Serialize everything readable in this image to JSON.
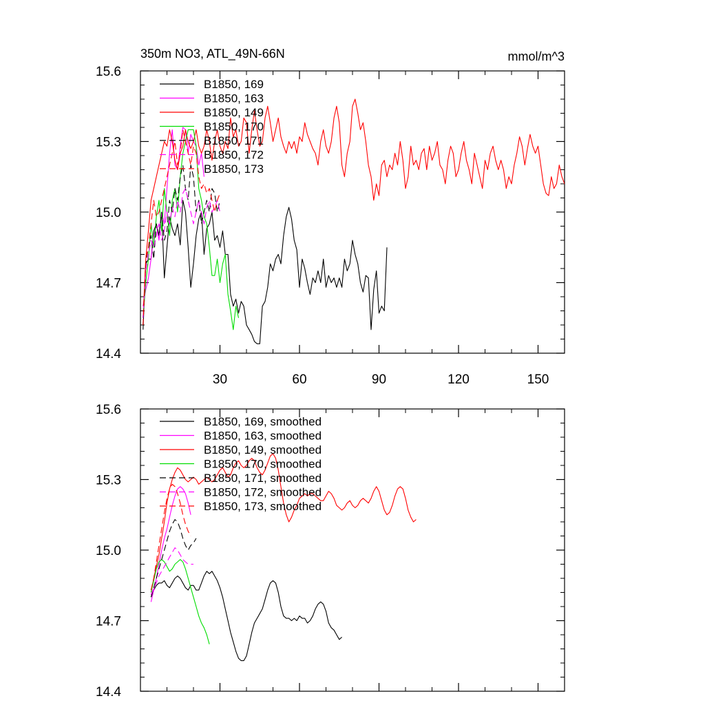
{
  "figure": {
    "title_left": "350m NO3, ATL_49N-66N",
    "title_right": "mmol/m^3"
  },
  "chart_data": [
    {
      "type": "line",
      "title": "350m NO3, ATL_49N-66N",
      "units": "mmol/m^3",
      "xlim": [
        0,
        160
      ],
      "ylim": [
        14.4,
        15.6
      ],
      "xticks": [
        30,
        60,
        90,
        120,
        150
      ],
      "xtick_labels": [
        "30",
        "60",
        "90",
        "120",
        "150"
      ],
      "yticks": [
        14.4,
        14.7,
        15.0,
        15.3,
        15.6
      ],
      "ytick_labels": [
        "14.4",
        "14.7",
        "15.0",
        "15.3",
        "15.6"
      ],
      "legend_position": "top-left",
      "series": [
        {
          "name": "B1850, 169",
          "color": "#000000",
          "dash": "solid",
          "x_start": 1,
          "values": [
            14.5,
            14.78,
            14.8,
            14.8,
            14.92,
            14.95,
            14.9,
            15.0,
            14.72,
            14.85,
            14.98,
            14.93,
            14.9,
            14.95,
            14.86,
            15.05,
            15.0,
            14.85,
            14.68,
            14.78,
            14.9,
            14.97,
            15.0,
            14.82,
            14.93,
            14.95,
            15.0,
            14.88,
            14.9,
            14.85,
            14.92,
            14.82,
            14.82,
            14.65,
            14.6,
            14.63,
            14.57,
            14.62,
            14.6,
            14.52,
            14.5,
            14.48,
            14.45,
            14.44,
            14.44,
            14.6,
            14.62,
            14.68,
            14.78,
            14.75,
            14.8,
            14.82,
            14.78,
            14.9,
            14.98,
            15.02,
            14.97,
            14.88,
            14.84,
            14.68,
            14.8,
            14.76,
            14.7,
            14.65,
            14.72,
            14.7,
            14.75,
            14.7,
            14.8,
            14.68,
            14.73,
            14.7,
            14.72,
            14.68,
            14.72,
            14.68,
            14.8,
            14.75,
            14.78,
            14.88,
            14.82,
            14.78,
            14.7,
            14.66,
            14.73,
            14.72,
            14.5,
            14.67,
            14.75,
            14.57,
            14.6,
            14.58,
            14.85
          ]
        },
        {
          "name": "B1850, 163",
          "color": "#ff00ff",
          "dash": "solid",
          "x_start": 1,
          "values": [
            14.6,
            14.67,
            14.72,
            14.8,
            14.9,
            14.95,
            14.88,
            15.0,
            14.95,
            15.1,
            15.25,
            15.35,
            15.2,
            15.18,
            15.28,
            15.36,
            15.35,
            15.25,
            15.33,
            15.3,
            15.28,
            15.2,
            15.25,
            15.15
          ]
        },
        {
          "name": "B1850, 149",
          "color": "#ff0000",
          "dash": "solid",
          "x_start": 1,
          "values": [
            14.55,
            14.8,
            14.92,
            15.05,
            15.1,
            15.15,
            15.2,
            15.25,
            15.3,
            15.28,
            15.35,
            15.3,
            15.22,
            15.18,
            15.25,
            15.28,
            15.35,
            15.3,
            15.27,
            15.3,
            15.35,
            15.28,
            15.25,
            15.28,
            15.35,
            15.3,
            15.22,
            15.3,
            15.35,
            15.28,
            15.25,
            15.3,
            15.27,
            15.4,
            15.32,
            15.35,
            15.28,
            15.3,
            15.4,
            15.38,
            15.25,
            15.35,
            15.43,
            15.35,
            15.28,
            15.3,
            15.4,
            15.45,
            15.38,
            15.3,
            15.35,
            15.4,
            15.32,
            15.28,
            15.25,
            15.3,
            15.27,
            15.3,
            15.25,
            15.32,
            15.3,
            15.38,
            15.33,
            15.3,
            15.27,
            15.25,
            15.2,
            15.3,
            15.35,
            15.28,
            15.25,
            15.3,
            15.4,
            15.45,
            15.38,
            15.2,
            15.15,
            15.25,
            15.3,
            15.45,
            15.48,
            15.42,
            15.35,
            15.38,
            15.3,
            15.2,
            15.15,
            15.05,
            15.12,
            15.07,
            15.2,
            15.22,
            15.15,
            15.2,
            15.18,
            15.25,
            15.2,
            15.3,
            15.22,
            15.1,
            15.15,
            15.28,
            15.2,
            15.22,
            15.18,
            15.25,
            15.27,
            15.18,
            15.28,
            15.22,
            15.25,
            15.3,
            15.2,
            15.18,
            15.12,
            15.22,
            15.28,
            15.25,
            15.15,
            15.18,
            15.25,
            15.3,
            15.22,
            15.18,
            15.12,
            15.25,
            15.2,
            15.15,
            15.1,
            15.22,
            15.18,
            15.25,
            15.28,
            15.22,
            15.18,
            15.22,
            15.18,
            15.1,
            15.15,
            15.12,
            15.2,
            15.25,
            15.32,
            15.28,
            15.2,
            15.27,
            15.33,
            15.28,
            15.25,
            15.28,
            15.2,
            15.12,
            15.08,
            15.07,
            15.15,
            15.1,
            15.12,
            15.2,
            15.15,
            15.12,
            15.1
          ]
        },
        {
          "name": "B1850, 170",
          "color": "#00dd00",
          "dash": "solid",
          "x_start": 1,
          "values": [
            14.55,
            14.7,
            14.8,
            14.95,
            14.85,
            14.98,
            15.05,
            14.92,
            15.1,
            15.0,
            14.9,
            15.05,
            15.1,
            15.0,
            15.15,
            15.25,
            15.3,
            15.35,
            15.35,
            15.35,
            15.28,
            15.1,
            15.05,
            14.98,
            14.95,
            14.85,
            14.73,
            14.73,
            14.8,
            14.7,
            14.78,
            14.82,
            14.65,
            14.58,
            14.5,
            14.6,
            14.55
          ]
        },
        {
          "name": "B1850, 171",
          "color": "#000000",
          "dash": "dashed",
          "x_start": 1,
          "values": [
            14.52,
            14.78,
            14.85,
            14.9,
            14.8,
            14.95,
            14.9,
            15.0,
            14.88,
            14.92,
            15.05,
            15.0,
            15.1,
            15.05,
            15.15,
            15.2,
            15.1,
            15.05,
            15.2,
            15.15,
            15.0,
            15.05,
            14.95,
            15.0,
            15.05,
            15.0,
            15.1,
            15.08,
            15.0,
            15.05
          ]
        },
        {
          "name": "B1850, 172",
          "color": "#ff00ff",
          "dash": "dashed",
          "x_start": 1,
          "values": [
            14.55,
            14.75,
            14.82,
            14.88,
            14.85,
            14.9,
            14.95,
            14.88,
            14.92,
            15.0,
            14.95,
            15.02,
            14.98,
            15.05,
            15.0,
            15.08,
            15.1,
            15.05,
            15.0,
            14.95,
            15.0,
            15.05,
            15.0,
            14.95,
            15.02,
            15.05,
            15.0,
            15.02,
            15.05,
            15.0
          ]
        },
        {
          "name": "B1850, 173",
          "color": "#ff0000",
          "dash": "dashed",
          "x_start": 1,
          "values": [
            14.52,
            14.8,
            14.85,
            14.95,
            15.05,
            14.98,
            15.0,
            15.05,
            15.1,
            15.15,
            15.2,
            15.25,
            15.3,
            15.2,
            15.25,
            15.35,
            15.3,
            15.25,
            15.2,
            15.28,
            15.25,
            15.15,
            15.1,
            15.12,
            15.08,
            15.1,
            15.05,
            15.0,
            15.05,
            15.08
          ]
        }
      ]
    },
    {
      "type": "line",
      "title": "",
      "xlim": [
        0,
        160
      ],
      "ylim": [
        14.4,
        15.6
      ],
      "xticks": [
        30,
        60,
        90,
        120,
        150
      ],
      "xtick_labels": [],
      "yticks": [
        14.4,
        14.7,
        15.0,
        15.3,
        15.6
      ],
      "ytick_labels": [
        "14.4",
        "14.7",
        "15.0",
        "15.3",
        "15.6"
      ],
      "legend_position": "top-left",
      "series": [
        {
          "name": "B1850, 169, smoothed",
          "color": "#000000",
          "dash": "solid",
          "x_start": 4,
          "values": [
            14.8,
            14.83,
            14.85,
            14.86,
            14.86,
            14.87,
            14.85,
            14.84,
            14.86,
            14.88,
            14.89,
            14.88,
            14.86,
            14.84,
            14.83,
            14.85,
            14.85,
            14.83,
            14.83,
            14.86,
            14.89,
            14.91,
            14.9,
            14.91,
            14.89,
            14.87,
            14.84,
            14.8,
            14.75,
            14.7,
            14.65,
            14.61,
            14.57,
            14.54,
            14.53,
            14.53,
            14.55,
            14.6,
            14.65,
            14.69,
            14.71,
            14.73,
            14.75,
            14.79,
            14.83,
            14.86,
            14.87,
            14.86,
            14.82,
            14.76,
            14.72,
            14.71,
            14.71,
            14.7,
            14.71,
            14.7,
            14.72,
            14.71,
            14.71,
            14.69,
            14.7,
            14.72,
            14.75,
            14.77,
            14.78,
            14.77,
            14.74,
            14.69,
            14.67,
            14.66,
            14.64,
            14.62,
            14.63
          ]
        },
        {
          "name": "B1850, 163, smoothed",
          "color": "#ff00ff",
          "dash": "solid",
          "x_start": 4,
          "values": [
            14.78,
            14.83,
            14.88,
            14.94,
            15.0,
            15.05,
            15.09,
            15.14,
            15.19,
            15.23,
            15.26,
            15.27,
            15.26,
            15.24,
            15.2,
            15.15
          ]
        },
        {
          "name": "B1850, 149, smoothed",
          "color": "#ff0000",
          "dash": "solid",
          "x_start": 4,
          "values": [
            14.82,
            14.88,
            14.93,
            14.98,
            15.05,
            15.12,
            15.2,
            15.26,
            15.3,
            15.33,
            15.35,
            15.34,
            15.32,
            15.3,
            15.29,
            15.3,
            15.31,
            15.3,
            15.28,
            15.29,
            15.3,
            15.31,
            15.3,
            15.29,
            15.3,
            15.32,
            15.34,
            15.35,
            15.33,
            15.31,
            15.32,
            15.35,
            15.37,
            15.38,
            15.36,
            15.35,
            15.36,
            15.38,
            15.39,
            15.38,
            15.35,
            15.33,
            15.32,
            15.34,
            15.37,
            15.4,
            15.41,
            15.39,
            15.34,
            15.27,
            15.2,
            15.15,
            15.12,
            15.14,
            15.17,
            15.19,
            15.22,
            15.23,
            15.24,
            15.23,
            15.24,
            15.24,
            15.23,
            15.22,
            15.21,
            15.21,
            15.23,
            15.25,
            15.24,
            15.22,
            15.19,
            15.18,
            15.17,
            15.18,
            15.2,
            15.21,
            15.19,
            15.18,
            15.19,
            15.21,
            15.22,
            15.21,
            15.2,
            15.22,
            15.25,
            15.27,
            15.25,
            15.21,
            15.17,
            15.15,
            15.16,
            15.19,
            15.23,
            15.26,
            15.27,
            15.26,
            15.22,
            15.17,
            15.14,
            15.12,
            15.13
          ]
        },
        {
          "name": "B1850, 170, smoothed",
          "color": "#00dd00",
          "dash": "solid",
          "x_start": 4,
          "values": [
            14.82,
            14.87,
            14.92,
            14.95,
            14.96,
            14.95,
            14.93,
            14.91,
            14.92,
            14.94,
            14.95,
            14.96,
            14.95,
            14.92,
            14.88,
            14.84,
            14.8,
            14.76,
            14.72,
            14.69,
            14.67,
            14.64,
            14.6
          ]
        },
        {
          "name": "B1850, 171, smoothed",
          "color": "#000000",
          "dash": "dashed",
          "x_start": 4,
          "values": [
            14.8,
            14.84,
            14.88,
            14.92,
            14.96,
            15.0,
            15.04,
            15.08,
            15.11,
            15.13,
            15.12,
            15.09,
            15.05,
            15.02,
            15.0,
            15.02,
            15.03,
            15.05
          ]
        },
        {
          "name": "B1850, 172, smoothed",
          "color": "#ff00ff",
          "dash": "dashed",
          "x_start": 4,
          "values": [
            14.81,
            14.84,
            14.86,
            14.89,
            14.91,
            14.93,
            14.95,
            14.97,
            14.99,
            15.01,
            15.0,
            14.98,
            14.96,
            14.95,
            14.94,
            14.94,
            14.94
          ]
        },
        {
          "name": "B1850, 173, smoothed",
          "color": "#ff0000",
          "dash": "dashed",
          "x_start": 4,
          "values": [
            14.83,
            14.88,
            14.95,
            15.02,
            15.09,
            15.16,
            15.22,
            15.26,
            15.28,
            15.27,
            15.24,
            15.2,
            15.15,
            15.11,
            15.08,
            15.06
          ]
        }
      ]
    }
  ]
}
